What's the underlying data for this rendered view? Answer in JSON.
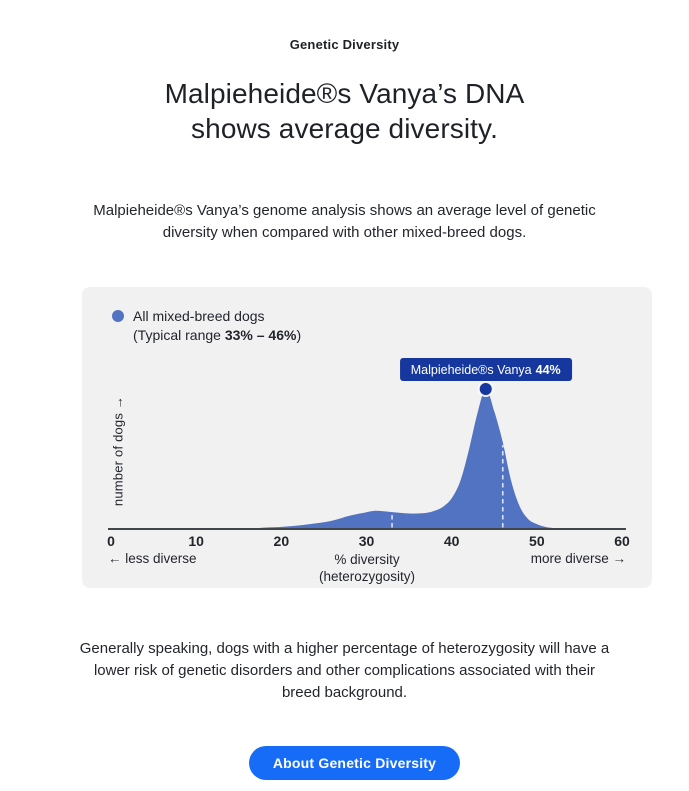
{
  "page": {
    "eyebrow": "Genetic Diversity",
    "title_line1": "Malpieheide®s Vanya’s DNA",
    "title_line2": "shows average diversity.",
    "intro": "Malpieheide®s Vanya’s genome analysis shows an average level of genetic diversity when compared with other mixed-breed dogs.",
    "footer_text": "Generally speaking, dogs with a higher percentage of heterozygosity will have a lower risk of genetic disorders and other complications associated with their breed background.",
    "button_label": "About Genetic Diversity"
  },
  "colors": {
    "accent_blue": "#176cf7",
    "deep_blue": "#16379d",
    "curve_blue": "#5173c2",
    "card_bg": "#f1f1f2",
    "text": "#22262c"
  },
  "legend": {
    "series_label": "All mixed-breed dogs",
    "range_prefix": "(Typical range ",
    "range_value": "33% – 46%",
    "range_suffix": ")"
  },
  "tooltip": {
    "label": "Malpieheide®s Vanya",
    "value": "44%"
  },
  "chart_data": {
    "type": "area",
    "title": "Distribution of genetic diversity (heterozygosity) among all mixed-breed dogs",
    "xlabel_line1": "% diversity",
    "xlabel_line2": "(heterozygosity)",
    "ylabel": "number of dogs →",
    "left_note": "← less diverse",
    "right_note": "more diverse →",
    "xlim": [
      0,
      60
    ],
    "x_ticks": [
      0,
      10,
      20,
      30,
      40,
      50,
      60
    ],
    "grid": false,
    "legend_position": "top-left",
    "typical_range_pct": [
      33,
      46
    ],
    "marker": {
      "x_pct": 44,
      "label": "Malpieheide®s Vanya",
      "value_pct": 44
    },
    "curve": [
      [
        16,
        0
      ],
      [
        18,
        0.01
      ],
      [
        20,
        0.015
      ],
      [
        22,
        0.025
      ],
      [
        24,
        0.04
      ],
      [
        26,
        0.06
      ],
      [
        28,
        0.095
      ],
      [
        30,
        0.12
      ],
      [
        31,
        0.13
      ],
      [
        32,
        0.127
      ],
      [
        33,
        0.121
      ],
      [
        34,
        0.115
      ],
      [
        35,
        0.111
      ],
      [
        36,
        0.111
      ],
      [
        37,
        0.115
      ],
      [
        38,
        0.13
      ],
      [
        39,
        0.16
      ],
      [
        40,
        0.22
      ],
      [
        41,
        0.34
      ],
      [
        42,
        0.56
      ],
      [
        43,
        0.82
      ],
      [
        44,
        1.0
      ],
      [
        45,
        0.84
      ],
      [
        46,
        0.62
      ],
      [
        47,
        0.34
      ],
      [
        48,
        0.16
      ],
      [
        49,
        0.07
      ],
      [
        50,
        0.035
      ],
      [
        51,
        0.015
      ],
      [
        52,
        0.006
      ],
      [
        53,
        0
      ]
    ]
  }
}
